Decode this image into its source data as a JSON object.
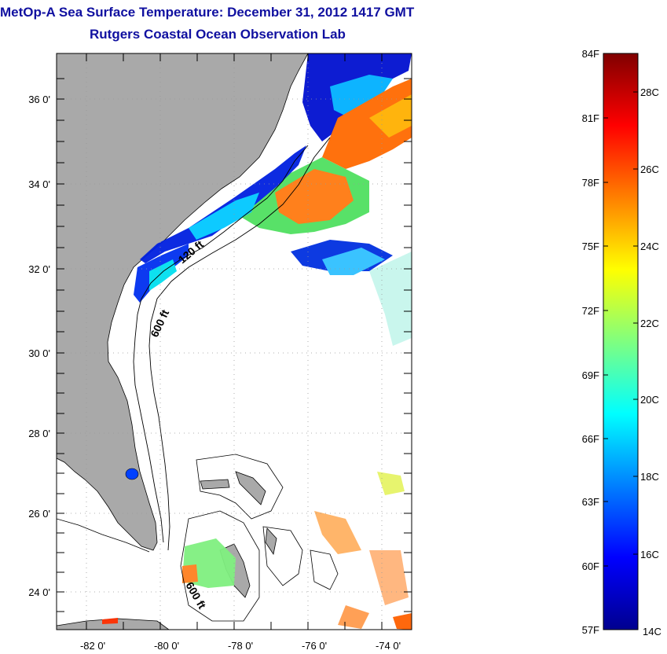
{
  "title": "MetOp-A Sea Surface Temperature:  December 31, 2012 1417 GMT",
  "subtitle": "Rutgers Coastal Ocean Observation Lab",
  "map": {
    "lat_ticks": [
      "36 0'",
      "34 0'",
      "32 0'",
      "30 0'",
      "28 0'",
      "26 0'",
      "24 0'"
    ],
    "lon_ticks": [
      "-82 0'",
      "-80 0'",
      "-78 0'",
      "-76 0'",
      "-74 0'"
    ],
    "contour_labels": [
      "120 ft",
      "600 ft",
      "600 ft"
    ],
    "land_color": "#a9a9a9"
  },
  "colorbar": {
    "fahrenheit": [
      "84F",
      "81F",
      "78F",
      "75F",
      "72F",
      "69F",
      "66F",
      "63F",
      "60F",
      "57F"
    ],
    "celsius": [
      "28C",
      "26C",
      "24C",
      "22C",
      "20C",
      "18C",
      "16C",
      "14C"
    ]
  }
}
